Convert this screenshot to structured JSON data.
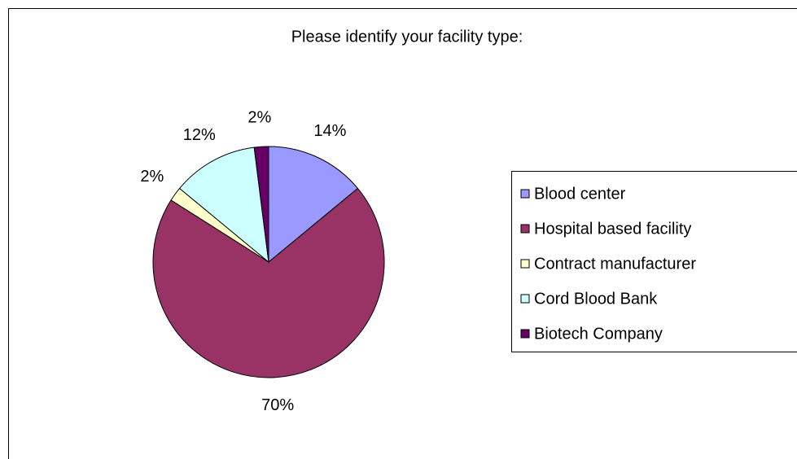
{
  "chart_data": {
    "type": "pie",
    "title": "Please identify your facility type:",
    "categories": [
      "Blood center",
      "Hospital based facility",
      "Contract manufacturer",
      "Cord Blood Bank",
      "Biotech Company"
    ],
    "values": [
      14,
      70,
      2,
      12,
      2
    ],
    "value_labels": [
      "14%",
      "70%",
      "2%",
      "12%",
      "2%"
    ],
    "colors": [
      "#9999FF",
      "#993366",
      "#FFFFCC",
      "#CCFFFF",
      "#660066"
    ],
    "legend": "right"
  }
}
